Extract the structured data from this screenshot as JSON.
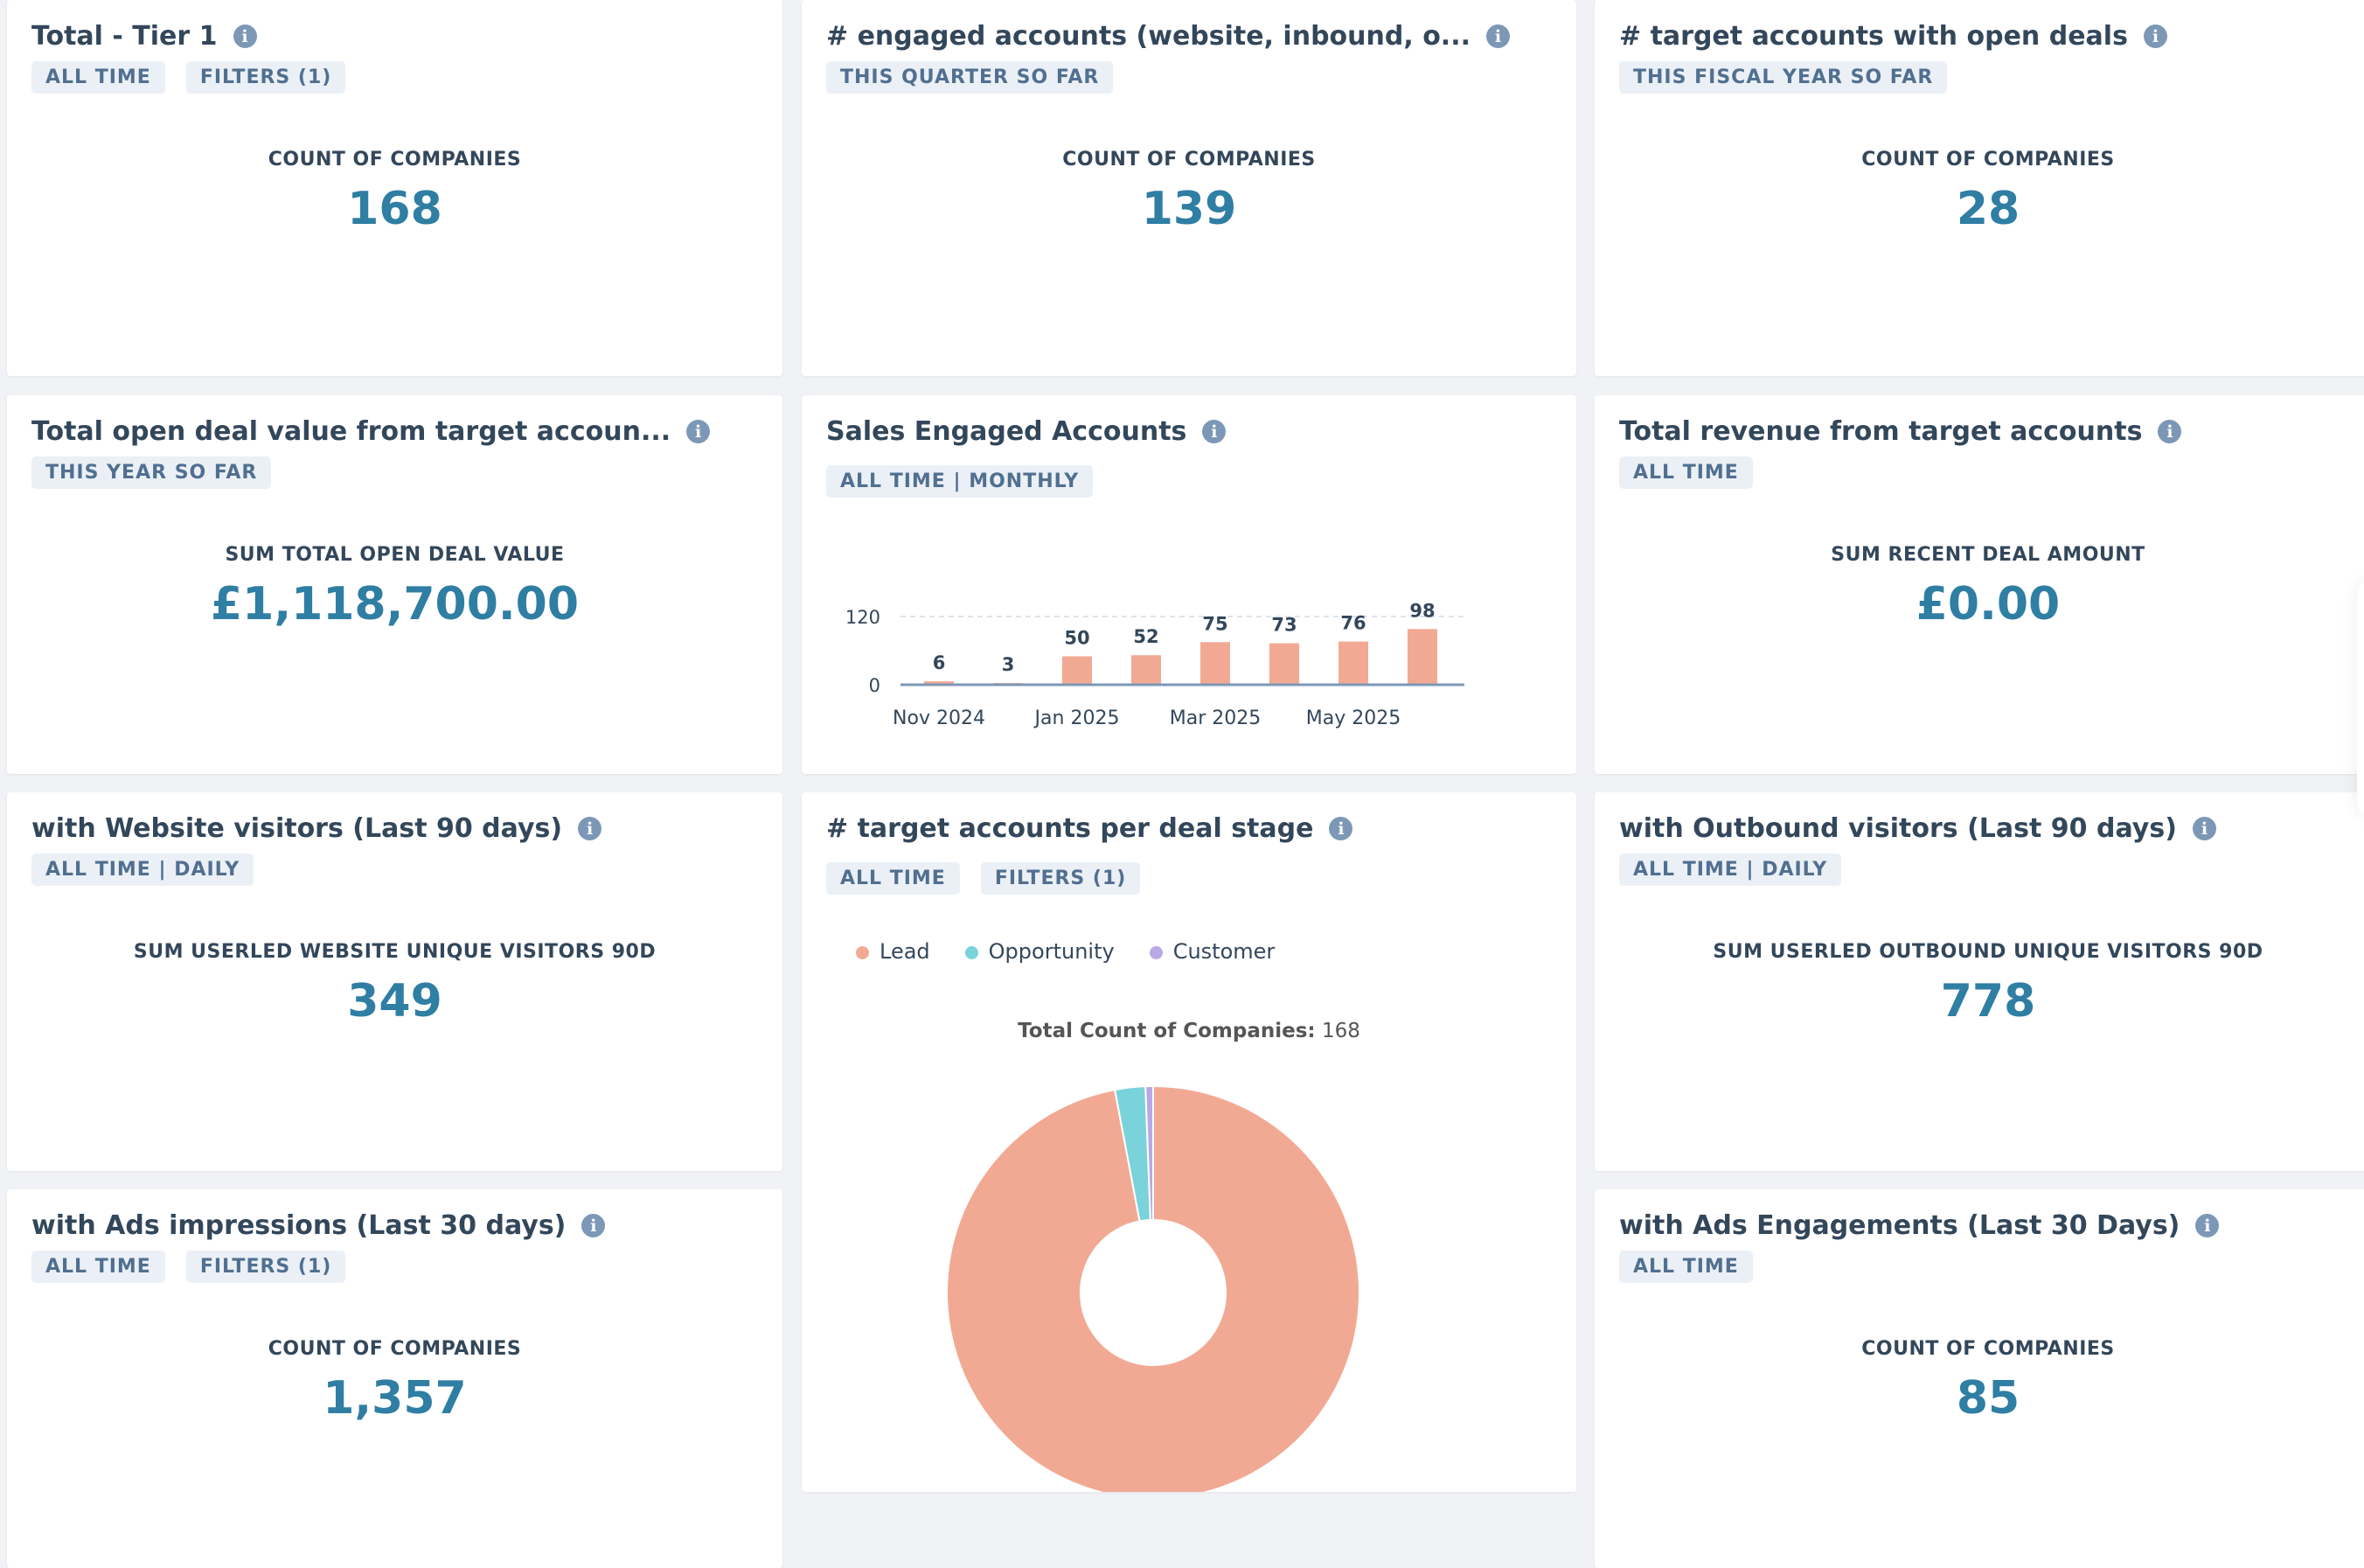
{
  "cards": [
    {
      "title": "Total - Tier 1",
      "tags": [
        "ALL TIME",
        "FILTERS (1)"
      ],
      "label": "COUNT OF COMPANIES",
      "value": "168"
    },
    {
      "title": "# engaged accounts (website, inbound, o...",
      "tags": [
        "THIS QUARTER SO FAR"
      ],
      "label": "COUNT OF COMPANIES",
      "value": "139"
    },
    {
      "title": "# target accounts with open deals",
      "tags": [
        "THIS FISCAL YEAR SO FAR"
      ],
      "label": "COUNT OF COMPANIES",
      "value": "28"
    },
    {
      "title": "Total open deal value from target accoun...",
      "tags": [
        "THIS YEAR SO FAR"
      ],
      "label": "SUM TOTAL OPEN DEAL VALUE",
      "value": "£1,118,700.00"
    },
    {
      "title": "Sales Engaged Accounts",
      "tags": [
        "ALL TIME | MONTHLY"
      ]
    },
    {
      "title": "Total revenue from target accounts",
      "tags": [
        "ALL TIME"
      ],
      "label": "SUM RECENT DEAL AMOUNT",
      "value": "£0.00"
    },
    {
      "title": "with Website visitors (Last 90 days)",
      "tags": [
        "ALL TIME | DAILY"
      ],
      "label": "SUM USERLED WEBSITE UNIQUE VISITORS 90D",
      "value": "349"
    },
    {
      "title": "# target accounts per deal stage",
      "tags": [
        "ALL TIME",
        "FILTERS (1)"
      ]
    },
    {
      "title": "with Outbound visitors (Last 90 days)",
      "tags": [
        "ALL TIME | DAILY"
      ],
      "label": "SUM USERLED OUTBOUND UNIQUE VISITORS 90D",
      "value": "778"
    },
    {
      "title": "with Ads impressions (Last 30 days)",
      "tags": [
        "ALL TIME",
        "FILTERS (1)"
      ],
      "label": "COUNT OF COMPANIES",
      "value": "1,357"
    },
    {
      "title": "with Ads Engagements (Last 30 Days)",
      "tags": [
        "ALL TIME"
      ],
      "label": "COUNT OF COMPANIES",
      "value": "85"
    }
  ],
  "info_icon": "info-circle-icon",
  "chart_data": [
    {
      "type": "bar",
      "categories": [
        "Nov 2024",
        "Dec 2024",
        "Jan 2025",
        "Feb 2025",
        "Mar 2025",
        "Apr 2025",
        "May 2025",
        "Jun 2025"
      ],
      "tick_labels": [
        "Nov 2024",
        "Jan 2025",
        "Mar 2025",
        "May 2025"
      ],
      "values": [
        6,
        3,
        50,
        52,
        75,
        73,
        76,
        98
      ],
      "ylim": [
        0,
        120
      ],
      "yticks": [
        "0",
        "120"
      ],
      "color": "#f2a993",
      "grid": true
    },
    {
      "type": "pie",
      "donut": true,
      "categories": [
        "Lead",
        "Opportunity",
        "Customer"
      ],
      "values": [
        163,
        4,
        1
      ],
      "colors": [
        "#f2a993",
        "#7ad3da",
        "#b9a8e6"
      ],
      "legend": "top",
      "total_label": "Total Count of Companies:",
      "total_value": "168"
    }
  ]
}
